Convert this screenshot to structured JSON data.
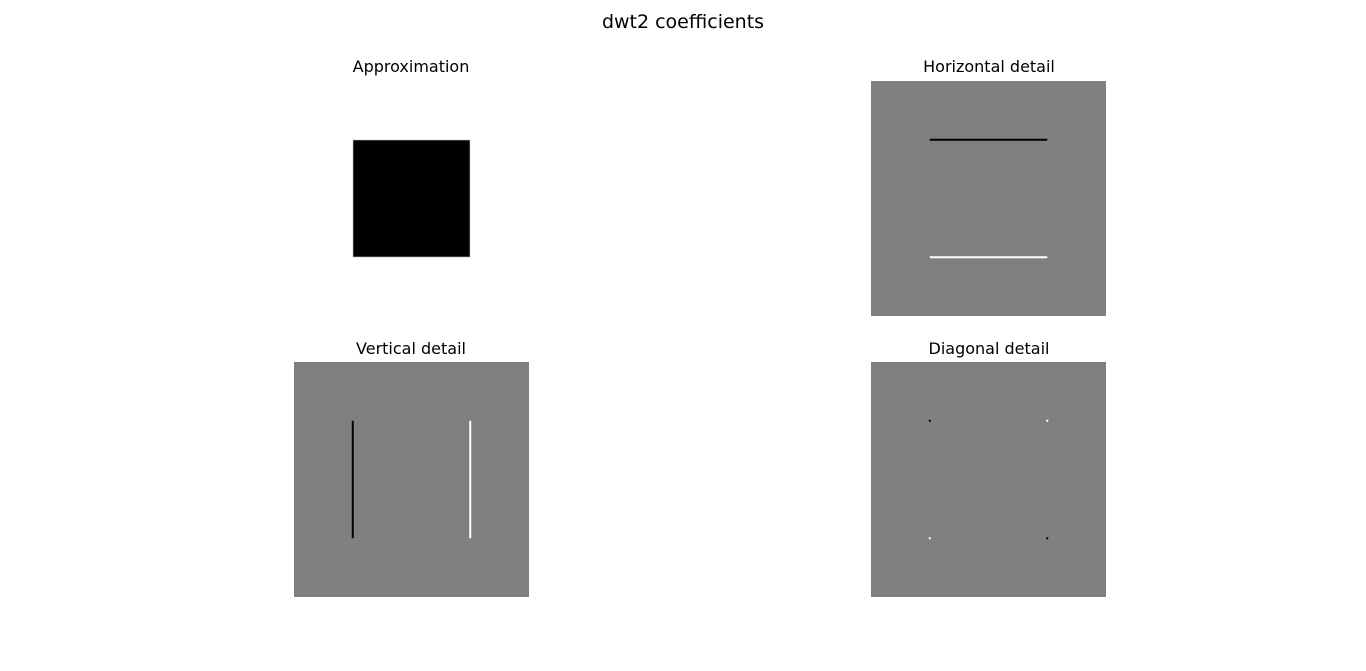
{
  "figure": {
    "title": "dwt2 coefficients"
  },
  "chart_data": [
    {
      "type": "heatmap",
      "title": "Approximation",
      "xlabel": "",
      "ylabel": "",
      "grid": false,
      "axes_visible": false,
      "colormap": "gray",
      "background_value": 1,
      "color_range": [
        0,
        1
      ],
      "features": [
        {
          "kind": "square",
          "value": 0,
          "row_range": [
            0.25,
            0.75
          ],
          "col_range": [
            0.25,
            0.75
          ]
        }
      ]
    },
    {
      "type": "heatmap",
      "title": "Horizontal detail",
      "xlabel": "",
      "ylabel": "",
      "grid": false,
      "axes_visible": false,
      "colormap": "gray",
      "background_value": 0,
      "color_range": [
        -1,
        1
      ],
      "features": [
        {
          "kind": "hline",
          "value": -1,
          "row": 0.25,
          "col_range": [
            0.25,
            0.75
          ]
        },
        {
          "kind": "hline",
          "value": 1,
          "row": 0.75,
          "col_range": [
            0.25,
            0.75
          ]
        }
      ]
    },
    {
      "type": "heatmap",
      "title": "Vertical detail",
      "xlabel": "",
      "ylabel": "",
      "grid": false,
      "axes_visible": false,
      "colormap": "gray",
      "background_value": 0,
      "color_range": [
        -1,
        1
      ],
      "features": [
        {
          "kind": "vline",
          "value": -1,
          "col": 0.25,
          "row_range": [
            0.25,
            0.75
          ]
        },
        {
          "kind": "vline",
          "value": 1,
          "col": 0.75,
          "row_range": [
            0.25,
            0.75
          ]
        }
      ]
    },
    {
      "type": "heatmap",
      "title": "Diagonal detail",
      "xlabel": "",
      "ylabel": "",
      "grid": false,
      "axes_visible": false,
      "colormap": "gray",
      "background_value": 0,
      "color_range": [
        -1,
        1
      ],
      "features": [
        {
          "kind": "dot",
          "value": -1,
          "row": 0.25,
          "col": 0.25
        },
        {
          "kind": "dot",
          "value": 1,
          "row": 0.25,
          "col": 0.75
        },
        {
          "kind": "dot",
          "value": 1,
          "row": 0.75,
          "col": 0.25
        },
        {
          "kind": "dot",
          "value": -1,
          "row": 0.75,
          "col": 0.75
        }
      ]
    }
  ]
}
